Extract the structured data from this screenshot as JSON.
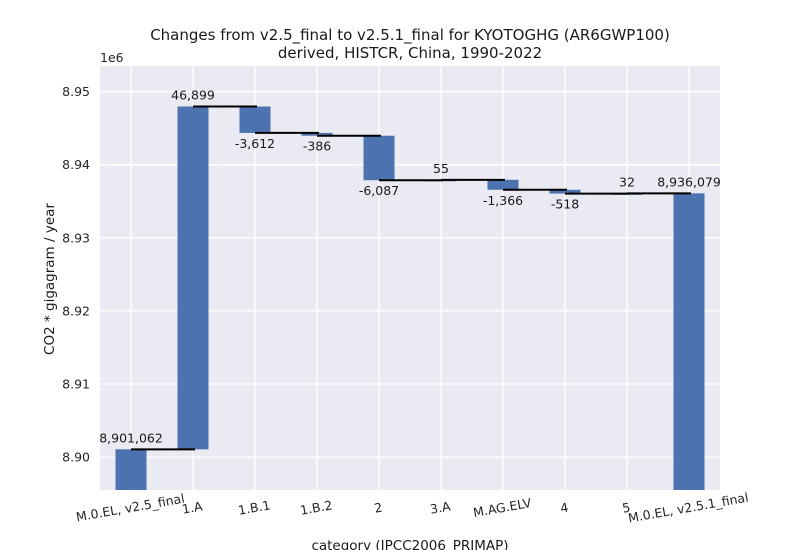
{
  "chart_data": {
    "type": "bar",
    "subtype": "waterfall",
    "title_line1": "Changes from v2.5_final to v2.5.1_final for KYOTOGHG (AR6GWP100)",
    "title_line2": "derived, HISTCR, China, 1990-2022",
    "xlabel": "category (IPCC2006_PRIMAP)",
    "ylabel": "CO2 * gigagram / year",
    "y_multiplier_label": "1e6",
    "ylim": [
      8.8955,
      8.9535
    ],
    "yticks": [
      8.9,
      8.91,
      8.92,
      8.93,
      8.94,
      8.95
    ],
    "ytick_labels": [
      "8.90",
      "8.91",
      "8.92",
      "8.93",
      "8.94",
      "8.95"
    ],
    "grid": true,
    "bar_color": "#4c72b0",
    "background_color": "#eaeaf2",
    "categories": [
      "M.0.EL, v2.5_final",
      "1.A",
      "1.B.1",
      "1.B.2",
      "2",
      "3.A",
      "M.AG.ELV",
      "4",
      "5",
      "M.0.EL, v2.5.1_final"
    ],
    "bars": [
      {
        "kind": "total",
        "value": 8901062,
        "label": "8,901,062"
      },
      {
        "kind": "delta",
        "value": 46899,
        "label": "46,899"
      },
      {
        "kind": "delta",
        "value": -3612,
        "label": "-3,612"
      },
      {
        "kind": "delta",
        "value": -386,
        "label": "-386"
      },
      {
        "kind": "delta",
        "value": -6087,
        "label": "-6,087"
      },
      {
        "kind": "delta",
        "value": 55,
        "label": "55"
      },
      {
        "kind": "delta",
        "value": -1366,
        "label": "-1,366"
      },
      {
        "kind": "delta",
        "value": -518,
        "label": "-518"
      },
      {
        "kind": "delta",
        "value": 32,
        "label": "32"
      },
      {
        "kind": "total",
        "value": 8936079,
        "label": "8,936,079"
      }
    ]
  }
}
